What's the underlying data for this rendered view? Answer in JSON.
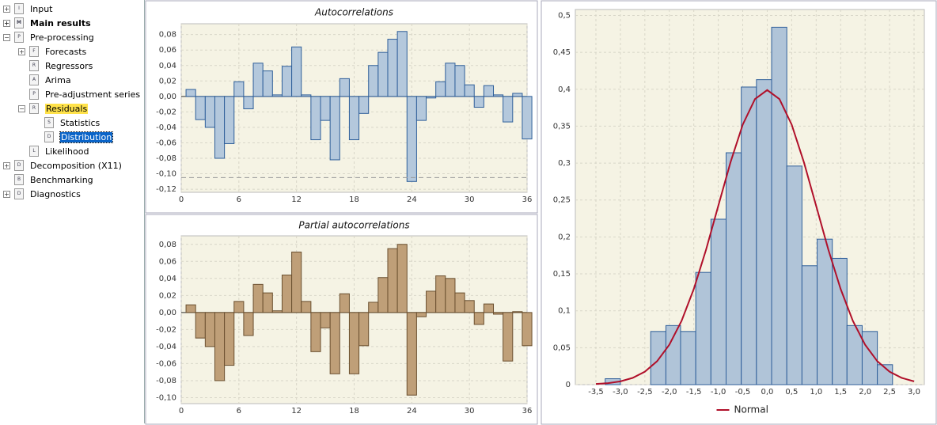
{
  "tree": {
    "nodes": [
      {
        "icon": "I",
        "label": "Input"
      },
      {
        "icon": "M",
        "label": "Main results"
      },
      {
        "icon": "P",
        "label": "Pre-processing"
      },
      {
        "icon": "F",
        "label": "Forecasts"
      },
      {
        "icon": "R",
        "label": "Regressors"
      },
      {
        "icon": "A",
        "label": "Arima"
      },
      {
        "icon": "P",
        "label": "Pre-adjustment series"
      },
      {
        "icon": "R",
        "label": "Residuals"
      },
      {
        "icon": "S",
        "label": "Statistics"
      },
      {
        "icon": "D",
        "label": "Distribution"
      },
      {
        "icon": "L",
        "label": "Likelihood"
      },
      {
        "icon": "D",
        "label": "Decomposition (X11)"
      },
      {
        "icon": "B",
        "label": "Benchmarking"
      },
      {
        "icon": "D",
        "label": "Diagnostics"
      }
    ]
  },
  "chart_data": [
    {
      "type": "bar",
      "title": "Autocorrelations",
      "color": "#b4c8dc",
      "edge_color": "#2f5f9a",
      "grid": true,
      "x": [
        1,
        2,
        3,
        4,
        5,
        6,
        7,
        8,
        9,
        10,
        11,
        12,
        13,
        14,
        15,
        16,
        17,
        18,
        19,
        20,
        21,
        22,
        23,
        24,
        25,
        26,
        27,
        28,
        29,
        30,
        31,
        32,
        33,
        34,
        35,
        36
      ],
      "values": [
        0.009,
        -0.03,
        -0.04,
        -0.08,
        -0.061,
        0.019,
        -0.016,
        0.043,
        0.033,
        0.002,
        0.039,
        0.064,
        0.002,
        -0.056,
        -0.031,
        -0.082,
        0.023,
        -0.056,
        -0.022,
        0.04,
        0.057,
        0.074,
        0.084,
        -0.11,
        -0.031,
        -0.002,
        0.019,
        0.043,
        0.04,
        0.015,
        -0.014,
        0.014,
        0.002,
        -0.033,
        0.004,
        -0.055
      ],
      "confidence_line": -0.105,
      "xlim": [
        0,
        36
      ],
      "xticks": [
        0,
        6,
        12,
        18,
        24,
        30,
        36
      ],
      "ylim": [
        -0.124,
        0.094
      ],
      "yticks": [
        {
          "value": 0.08,
          "label": "0,08"
        },
        {
          "value": 0.06,
          "label": "0,06"
        },
        {
          "value": 0.04,
          "label": "0,04"
        },
        {
          "value": 0.02,
          "label": "0,02"
        },
        {
          "value": 0,
          "label": "0,00"
        },
        {
          "value": -0.02,
          "label": "-0,02"
        },
        {
          "value": -0.04,
          "label": "-0,04"
        },
        {
          "value": -0.06,
          "label": "-0,06"
        },
        {
          "value": -0.08,
          "label": "-0,08"
        },
        {
          "value": -0.1,
          "label": "-0,10"
        },
        {
          "value": -0.12,
          "label": "-0,12"
        }
      ]
    },
    {
      "type": "bar",
      "title": "Partial autocorrelations",
      "color": "#bf9f78",
      "edge_color": "#6b5030",
      "grid": true,
      "x": [
        1,
        2,
        3,
        4,
        5,
        6,
        7,
        8,
        9,
        10,
        11,
        12,
        13,
        14,
        15,
        16,
        17,
        18,
        19,
        20,
        21,
        22,
        23,
        24,
        25,
        26,
        27,
        28,
        29,
        30,
        31,
        32,
        33,
        34,
        35,
        36
      ],
      "values": [
        0.009,
        -0.03,
        -0.04,
        -0.08,
        -0.062,
        0.013,
        -0.027,
        0.033,
        0.023,
        0.002,
        0.044,
        0.071,
        0.013,
        -0.046,
        -0.018,
        -0.072,
        0.022,
        -0.072,
        -0.039,
        0.012,
        0.041,
        0.075,
        0.08,
        -0.097,
        -0.005,
        0.025,
        0.043,
        0.04,
        0.023,
        0.014,
        -0.014,
        0.01,
        -0.002,
        -0.057,
        0.001,
        -0.039
      ],
      "xlim": [
        0,
        36
      ],
      "xticks": [
        0,
        6,
        12,
        18,
        24,
        30,
        36
      ],
      "ylim": [
        -0.107,
        0.09
      ],
      "yticks": [
        {
          "value": 0.08,
          "label": "0,08"
        },
        {
          "value": 0.06,
          "label": "0,06"
        },
        {
          "value": 0.04,
          "label": "0,04"
        },
        {
          "value": 0.02,
          "label": "0,02"
        },
        {
          "value": 0,
          "label": "0,00"
        },
        {
          "value": -0.02,
          "label": "-0,02"
        },
        {
          "value": -0.04,
          "label": "-0,04"
        },
        {
          "value": -0.06,
          "label": "-0,06"
        },
        {
          "value": -0.08,
          "label": "-0,08"
        },
        {
          "value": -0.1,
          "label": "-0,10"
        }
      ]
    },
    {
      "type": "histogram",
      "color": "#b0c4d8",
      "edge_color": "#2f5f9a",
      "grid": true,
      "legend": "bottom",
      "bins": [
        -3.31,
        -3.0,
        -2.69,
        -2.38,
        -2.07,
        -1.77,
        -1.46,
        -1.15,
        -0.84,
        -0.53,
        -0.22,
        0.09,
        0.4,
        0.71,
        1.02,
        1.33,
        1.63,
        1.94,
        2.25,
        2.56
      ],
      "values": [
        0.008,
        0,
        0,
        0.072,
        0.08,
        0.072,
        0.152,
        0.224,
        0.314,
        0.403,
        0.413,
        0.484,
        0.296,
        0.161,
        0.197,
        0.171,
        0.08,
        0.072,
        0.027
      ],
      "series": [
        {
          "name": "Normal",
          "color": "#b0102a",
          "x": [
            -3.5,
            -3.25,
            -3.0,
            -2.75,
            -2.5,
            -2.25,
            -2.0,
            -1.75,
            -1.5,
            -1.25,
            -1.0,
            -0.75,
            -0.5,
            -0.25,
            0,
            0.25,
            0.5,
            0.75,
            1.0,
            1.25,
            1.5,
            1.75,
            2.0,
            2.25,
            2.5,
            2.75,
            3.0
          ],
          "values": [
            0.0009,
            0.002,
            0.0044,
            0.0091,
            0.0175,
            0.0317,
            0.054,
            0.0863,
            0.1295,
            0.1826,
            0.242,
            0.3011,
            0.3521,
            0.3867,
            0.3989,
            0.3867,
            0.3521,
            0.3011,
            0.242,
            0.1826,
            0.1295,
            0.0863,
            0.054,
            0.0317,
            0.0175,
            0.0091,
            0.0044
          ]
        }
      ],
      "xlim": [
        -3.92,
        3.21
      ],
      "xticks": [
        {
          "value": -3.5,
          "label": "-3,5"
        },
        {
          "value": -3.0,
          "label": "-3,0"
        },
        {
          "value": -2.5,
          "label": "-2,5"
        },
        {
          "value": -2.0,
          "label": "-2,0"
        },
        {
          "value": -1.5,
          "label": "-1,5"
        },
        {
          "value": -1.0,
          "label": "-1,0"
        },
        {
          "value": -0.5,
          "label": "-0,5"
        },
        {
          "value": 0,
          "label": "0,0"
        },
        {
          "value": 0.5,
          "label": "0,5"
        },
        {
          "value": 1.0,
          "label": "1,0"
        },
        {
          "value": 1.5,
          "label": "1,5"
        },
        {
          "value": 2.0,
          "label": "2,0"
        },
        {
          "value": 2.5,
          "label": "2,5"
        },
        {
          "value": 3.0,
          "label": "3,0"
        }
      ],
      "ylim": [
        0,
        0.508
      ],
      "yticks": [
        0,
        {
          "value": 0.05,
          "label": "0,05"
        },
        {
          "value": 0.1,
          "label": "0,1"
        },
        {
          "value": 0.15,
          "label": "0,15"
        },
        {
          "value": 0.2,
          "label": "0,2"
        },
        {
          "value": 0.25,
          "label": "0,25"
        },
        {
          "value": 0.3,
          "label": "0,3"
        },
        {
          "value": 0.35,
          "label": "0,35"
        },
        {
          "value": 0.4,
          "label": "0,4"
        },
        {
          "value": 0.45,
          "label": "0,45"
        },
        {
          "value": 0.5,
          "label": "0,5"
        }
      ]
    }
  ]
}
